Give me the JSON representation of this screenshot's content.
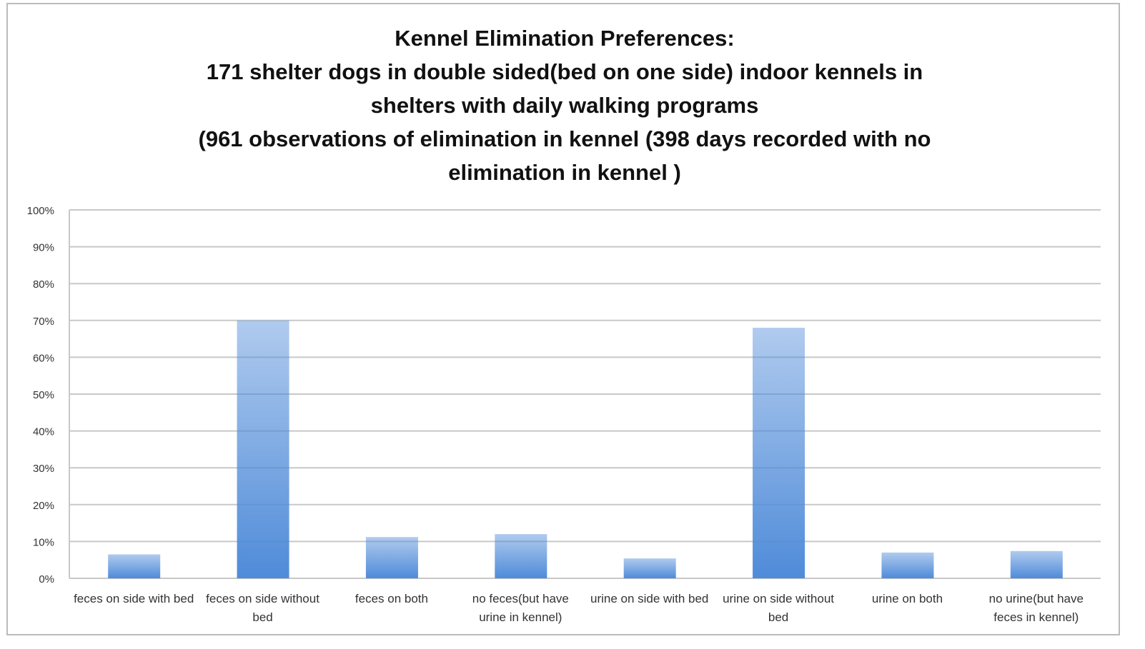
{
  "chart_data": {
    "type": "bar",
    "title": [
      "Kennel Elimination Preferences:",
      "171 shelter dogs in double sided(bed on one side) indoor kennels in",
      "shelters with daily walking programs",
      "(961 observations of elimination in kennel (398 days recorded with no",
      "elimination in kennel )"
    ],
    "categories": [
      "feces on side with bed",
      "feces on side without bed",
      "feces on both",
      "no feces(but have urine in kennel)",
      "urine on side with bed",
      "urine on side without bed",
      "urine on both",
      "no urine(but have feces in kennel)"
    ],
    "values": [
      6.5,
      70,
      11.2,
      12,
      5.4,
      68,
      7,
      7.4
    ],
    "color": "#4f8bd9",
    "ylim": [
      0,
      100
    ],
    "yticks": [
      {
        "value": 0,
        "label": "0%"
      },
      {
        "value": 10,
        "label": "10%"
      },
      {
        "value": 20,
        "label": "20%"
      },
      {
        "value": 30,
        "label": "30%"
      },
      {
        "value": 40,
        "label": "40%"
      },
      {
        "value": 50,
        "label": "50%"
      },
      {
        "value": 60,
        "label": "60%"
      },
      {
        "value": 70,
        "label": "70%"
      },
      {
        "value": 80,
        "label": "80%"
      },
      {
        "value": 90,
        "label": "90%"
      },
      {
        "value": 100,
        "label": "100%"
      }
    ],
    "grid": true
  }
}
